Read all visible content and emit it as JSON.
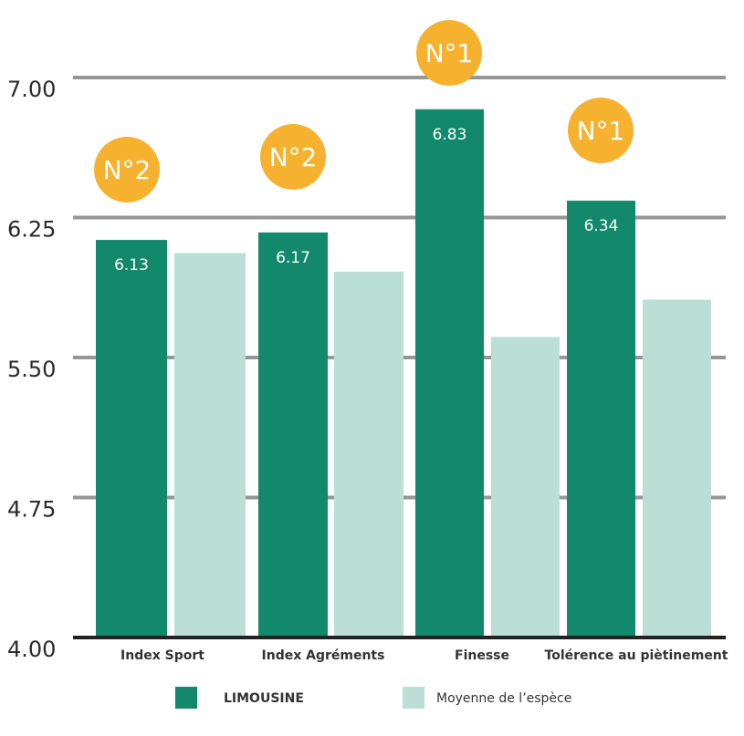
{
  "chart_data": {
    "type": "bar",
    "ylim": [
      4.0,
      7.0
    ],
    "yticks": [
      "4.00",
      "4.75",
      "5.50",
      "6.25",
      "7.00"
    ],
    "grid": true,
    "legend_position": "bottom",
    "categories": [
      "Index Sport",
      "Index Agréments",
      "Finesse",
      "Tolérence au  piètinement"
    ],
    "series": [
      {
        "name": "LIMOUSINE",
        "values": [
          6.13,
          6.17,
          6.83,
          6.34
        ],
        "labels": [
          "6.13",
          "6.17",
          "6.83",
          "6.34"
        ],
        "color": "#12896a"
      },
      {
        "name": "Moyenne de l’espèce",
        "values": [
          6.06,
          5.96,
          5.61,
          5.81
        ],
        "color": "#bbdfd5"
      }
    ],
    "badges": [
      "N°2",
      "N°2",
      "N°1",
      "N°1"
    ],
    "badge_color": "#f6b12f",
    "grid_color": "#969696",
    "axis_color": "#222222"
  }
}
